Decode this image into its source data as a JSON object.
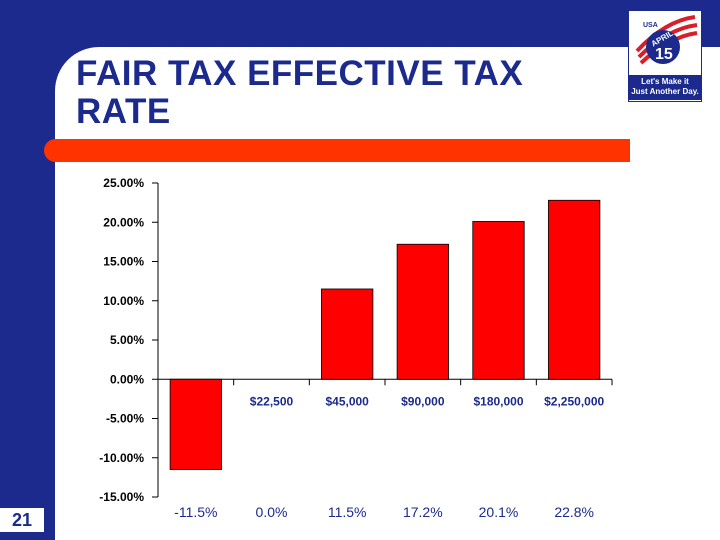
{
  "slide": {
    "title": "FAIR TAX EFFECTIVE TAX RATE",
    "number": "21",
    "logo": {
      "top_text": "USA",
      "word": "APRIL",
      "day": "15",
      "tagline_1": "Let's Make it",
      "tagline_2": "Just Another Day."
    }
  },
  "colors": {
    "background": "#1b2a8c",
    "accent": "#ff3300",
    "bar": "#ff0000"
  },
  "chart_data": {
    "type": "bar",
    "title": "",
    "xlabel": "",
    "ylabel": "",
    "categories": [
      "",
      "$22,500",
      "$45,000",
      "$90,000",
      "$180,000",
      "$2,250,000"
    ],
    "values": [
      -11.5,
      0.0,
      11.5,
      17.2,
      20.1,
      22.8
    ],
    "data_labels": [
      "-11.5%",
      "0.0%",
      "11.5%",
      "17.2%",
      "20.1%",
      "22.8%"
    ],
    "yticks": [
      "25.00%",
      "20.00%",
      "15.00%",
      "10.00%",
      "5.00%",
      "0.00%",
      "-5.00%",
      "-10.00%",
      "-15.00%"
    ],
    "ylim": [
      -15,
      25
    ],
    "grid": false,
    "legend": false
  }
}
